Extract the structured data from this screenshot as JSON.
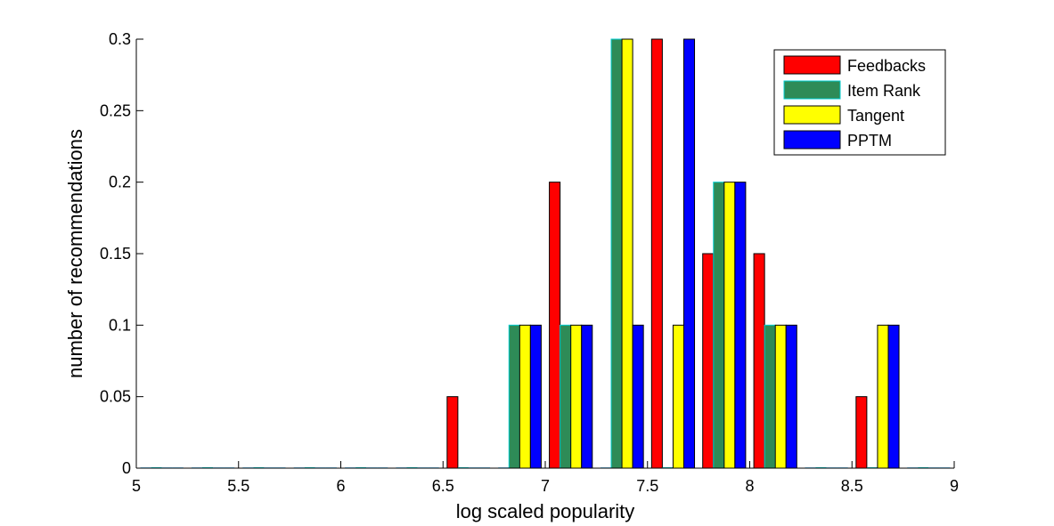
{
  "chart_data": {
    "type": "bar",
    "xlabel": "log scaled popularity",
    "ylabel": "number of recommendations",
    "xlim": [
      5,
      9
    ],
    "ylim": [
      0,
      0.3
    ],
    "x_ticks": [
      "5",
      "5.5",
      "6",
      "6.5",
      "7",
      "7.5",
      "8",
      "8.5",
      "9"
    ],
    "y_ticks": [
      "0",
      "0.05",
      "0.1",
      "0.15",
      "0.2",
      "0.25",
      "0.3"
    ],
    "legend_position": "top-right",
    "x": [
      5.125,
      5.375,
      5.625,
      5.875,
      6.125,
      6.375,
      6.625,
      6.875,
      7.125,
      7.375,
      7.625,
      7.875,
      8.125,
      8.375,
      8.625,
      8.875
    ],
    "series": [
      {
        "name": "Feedbacks",
        "color": "#ff0000",
        "values": [
          0,
          0,
          0,
          0,
          0,
          0,
          0.05,
          0,
          0.2,
          0,
          0.3,
          0.15,
          0.15,
          0,
          0.05,
          0
        ]
      },
      {
        "name": "Item Rank",
        "color": "#2e8b57",
        "edge": "#00ced1",
        "values": [
          0,
          0,
          0,
          0,
          0,
          0,
          0,
          0.1,
          0.1,
          0.3,
          0,
          0.2,
          0.1,
          0,
          0,
          0
        ]
      },
      {
        "name": "Tangent",
        "color": "#ffff00",
        "values": [
          0,
          0,
          0,
          0,
          0,
          0,
          0,
          0.1,
          0.1,
          0.3,
          0.1,
          0.2,
          0.1,
          0,
          0.1,
          0
        ]
      },
      {
        "name": "PPTM",
        "color": "#0000ff",
        "values": [
          0,
          0,
          0,
          0,
          0,
          0,
          0,
          0.1,
          0.1,
          0.1,
          0.3,
          0.2,
          0.1,
          0,
          0.1,
          0
        ]
      }
    ]
  }
}
